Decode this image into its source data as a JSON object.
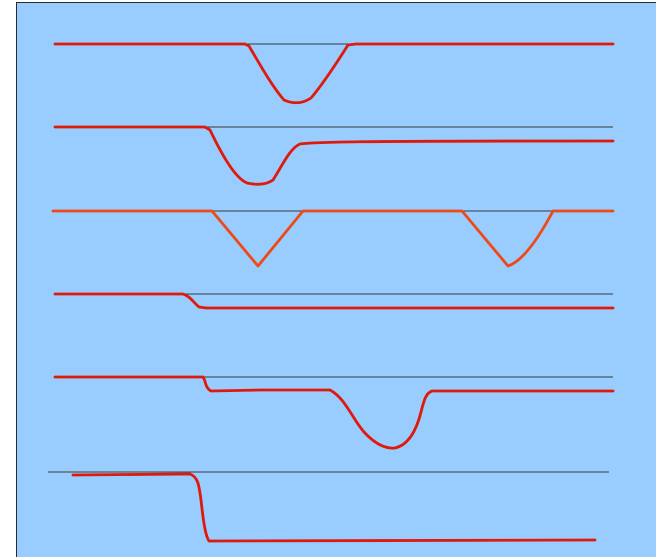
{
  "colors": {
    "background": "#99CCFF",
    "reference_line": "#3a3a3a",
    "trace_red": "#E01A0A",
    "trace_orange": "#F04A14",
    "frame_border": "#2a2a2a"
  },
  "traces": [
    {
      "id": "trace-1",
      "color_key": "trace_red",
      "description_name": "symmetric-dip-trace"
    },
    {
      "id": "trace-2",
      "color_key": "trace_red",
      "description_name": "dip-with-offset-trace"
    },
    {
      "id": "trace-3",
      "color_key": "trace_orange",
      "description_name": "double-dip-trace"
    },
    {
      "id": "trace-4",
      "color_key": "trace_red",
      "description_name": "small-step-trace"
    },
    {
      "id": "trace-5",
      "color_key": "trace_red",
      "description_name": "step-then-dip-trace"
    },
    {
      "id": "trace-6",
      "color_key": "trace_red",
      "description_name": "large-step-trace"
    }
  ]
}
